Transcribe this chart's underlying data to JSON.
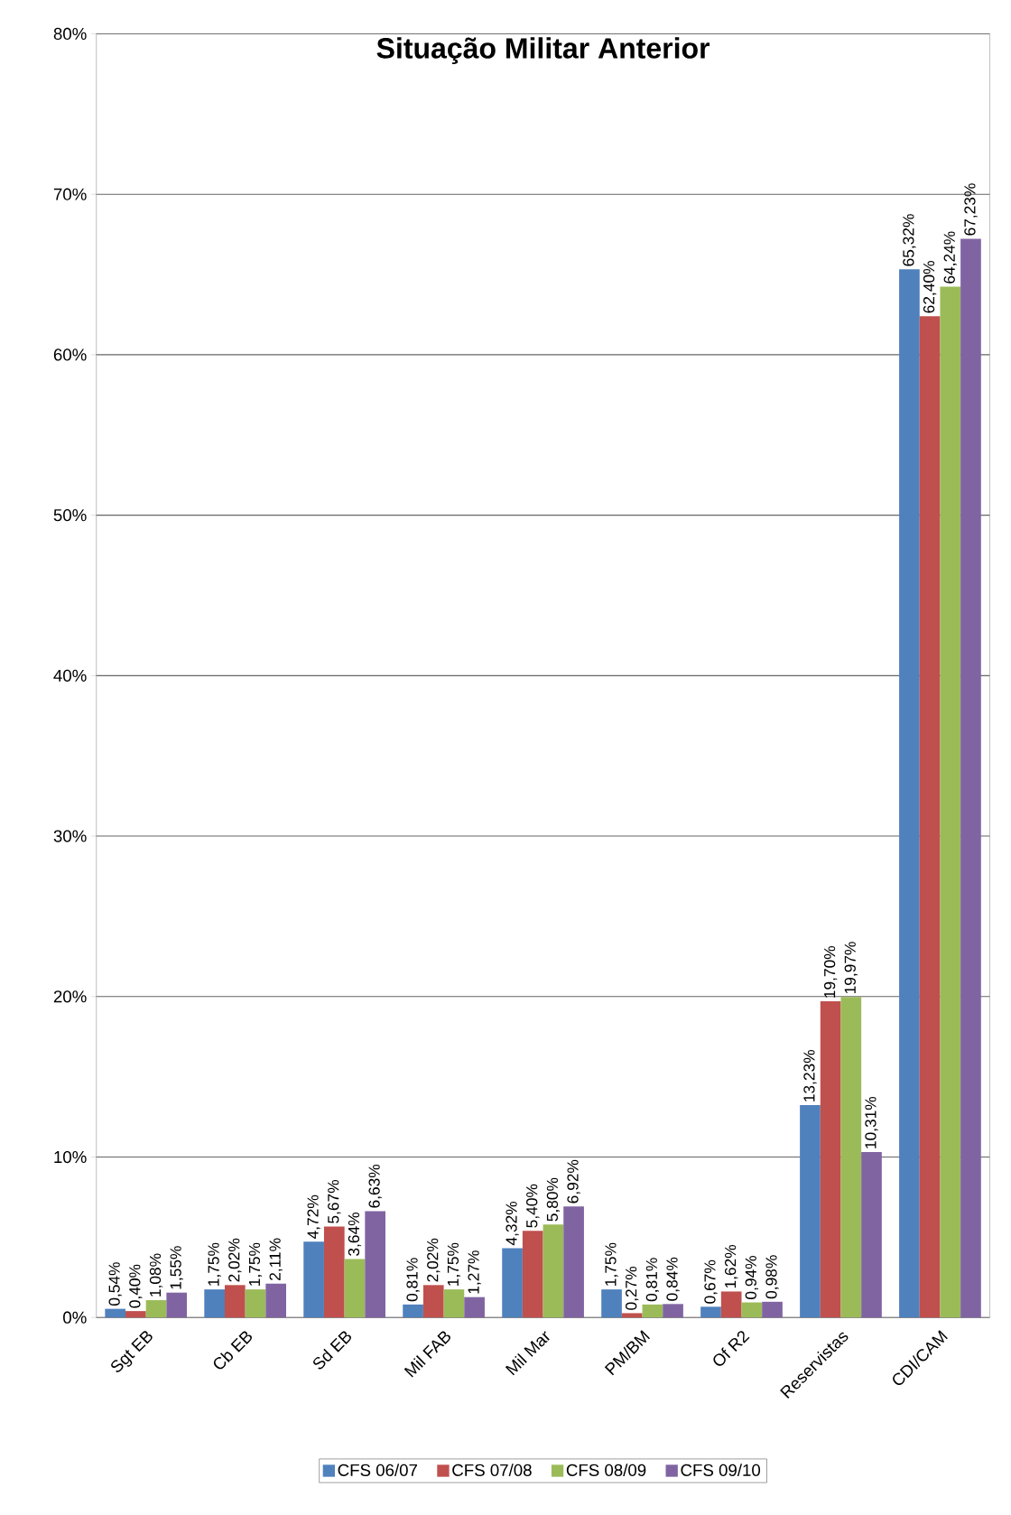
{
  "chart_data": {
    "type": "bar",
    "title": "Situação Militar Anterior",
    "categories": [
      "Sgt EB",
      "Cb EB",
      "Sd EB",
      "Mil FAB",
      "Mil Mar",
      "PM/BM",
      "Of R2",
      "Reservistas",
      "CDI/CAM"
    ],
    "series": [
      {
        "name": "CFS 06/07",
        "color": "#4f81bd",
        "values": [
          0.54,
          1.75,
          4.72,
          0.81,
          4.32,
          1.75,
          0.67,
          13.23,
          65.32
        ],
        "value_labels": [
          "0,54%",
          "1,75%",
          "4,72%",
          "0,81%",
          "4,32%",
          "1,75%",
          "0,67%",
          "13,23%",
          "65,32%"
        ]
      },
      {
        "name": "CFS 07/08",
        "color": "#c0504d",
        "values": [
          0.4,
          2.02,
          5.67,
          2.02,
          5.4,
          0.27,
          1.62,
          19.7,
          62.4
        ],
        "value_labels": [
          "0,40%",
          "2,02%",
          "5,67%",
          "2,02%",
          "5,40%",
          "0,27%",
          "1,62%",
          "19,70%",
          "62,40%"
        ]
      },
      {
        "name": "CFS 08/09",
        "color": "#9bbb59",
        "values": [
          1.08,
          1.75,
          3.64,
          1.75,
          5.8,
          0.81,
          0.94,
          19.97,
          64.24
        ],
        "value_labels": [
          "1,08%",
          "1,75%",
          "3,64%",
          "1,75%",
          "5,80%",
          "0,81%",
          "0,94%",
          "19,97%",
          "64,24%"
        ]
      },
      {
        "name": "CFS 09/10",
        "color": "#8064a2",
        "values": [
          1.55,
          2.11,
          6.63,
          1.27,
          6.92,
          0.84,
          0.98,
          10.31,
          67.23
        ],
        "value_labels": [
          "1,55%",
          "2,11%",
          "6,63%",
          "1,27%",
          "6,92%",
          "0,84%",
          "0,98%",
          "10,31%",
          "67,23%"
        ]
      }
    ],
    "ylim": [
      0,
      80
    ],
    "yticks": [
      {
        "value": 0,
        "label": "0%"
      },
      {
        "value": 10,
        "label": "10%"
      },
      {
        "value": 20,
        "label": "20%"
      },
      {
        "value": 30,
        "label": "30%"
      },
      {
        "value": 40,
        "label": "40%"
      },
      {
        "value": 50,
        "label": "50%"
      },
      {
        "value": 60,
        "label": "60%"
      },
      {
        "value": 70,
        "label": "70%"
      },
      {
        "value": 80,
        "label": "80%"
      }
    ],
    "grid": "y",
    "legend": "bottom"
  }
}
